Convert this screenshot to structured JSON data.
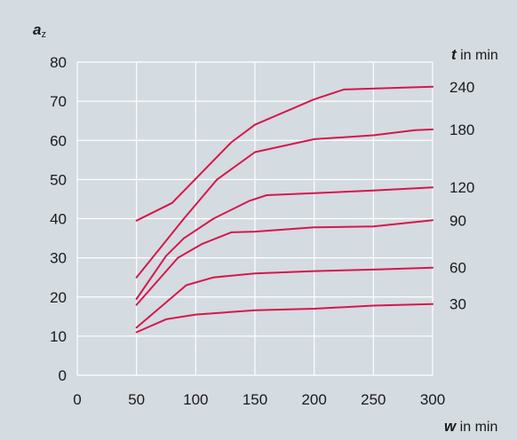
{
  "chart_data": {
    "type": "line",
    "x_axis": {
      "symbol": "w",
      "unit": " in min",
      "ticks": [
        0,
        50,
        100,
        150,
        200,
        250,
        300
      ],
      "range": [
        0,
        300
      ]
    },
    "y_axis": {
      "symbol": "a",
      "subscript": "z",
      "ticks": [
        0,
        10,
        20,
        30,
        40,
        50,
        60,
        70,
        80
      ],
      "range": [
        0,
        80
      ]
    },
    "right_axis": {
      "symbol": "t",
      "unit": " in min"
    },
    "grid": true,
    "line_color": "#d6174a",
    "grid_color": "#ffffff",
    "background_color": "#d4dbe1",
    "series": [
      {
        "label": "240",
        "points": [
          [
            50,
            39.5
          ],
          [
            80,
            44
          ],
          [
            130,
            59.5
          ],
          [
            150,
            64
          ],
          [
            200,
            70.5
          ],
          [
            225,
            73
          ],
          [
            300,
            73.7
          ]
        ]
      },
      {
        "label": "180",
        "points": [
          [
            50,
            25
          ],
          [
            90,
            40
          ],
          [
            118,
            50
          ],
          [
            150,
            57
          ],
          [
            200,
            60.3
          ],
          [
            250,
            61.3
          ],
          [
            285,
            62.6
          ],
          [
            300,
            62.8
          ]
        ]
      },
      {
        "label": "120",
        "points": [
          [
            50,
            19.5
          ],
          [
            75,
            30.5
          ],
          [
            90,
            35
          ],
          [
            115,
            40
          ],
          [
            145,
            44.5
          ],
          [
            160,
            46
          ],
          [
            200,
            46.5
          ],
          [
            250,
            47.2
          ],
          [
            300,
            48
          ]
        ]
      },
      {
        "label": "90",
        "points": [
          [
            50,
            18
          ],
          [
            85,
            30
          ],
          [
            105,
            33.5
          ],
          [
            130,
            36.5
          ],
          [
            150,
            36.7
          ],
          [
            200,
            37.8
          ],
          [
            250,
            38
          ],
          [
            300,
            39.6
          ]
        ]
      },
      {
        "label": "60",
        "points": [
          [
            50,
            12.2
          ],
          [
            92,
            23
          ],
          [
            115,
            25
          ],
          [
            150,
            26
          ],
          [
            200,
            26.6
          ],
          [
            250,
            27
          ],
          [
            300,
            27.5
          ]
        ]
      },
      {
        "label": "30",
        "points": [
          [
            50,
            11
          ],
          [
            75,
            14.3
          ],
          [
            100,
            15.5
          ],
          [
            150,
            16.6
          ],
          [
            200,
            17
          ],
          [
            250,
            17.8
          ],
          [
            300,
            18.2
          ]
        ]
      }
    ]
  }
}
